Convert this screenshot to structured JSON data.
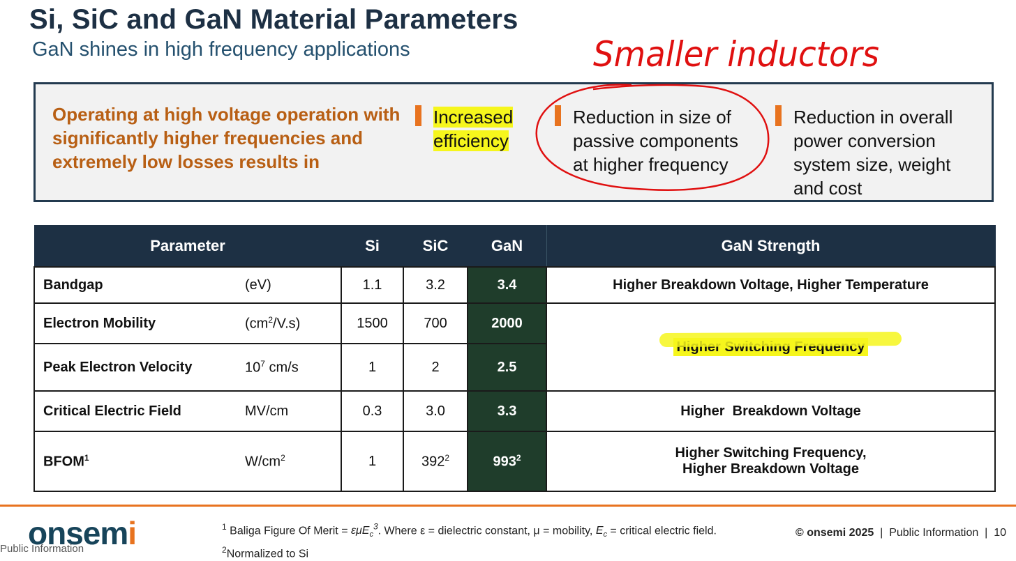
{
  "header": {
    "title": "Si, SiC and GaN Material Parameters",
    "subtitle": "GaN shines in high frequency applications"
  },
  "annotations": {
    "handwritten_note": "Smaller inductors",
    "highlight_color": "#f6f61c",
    "ink_color": "#e01010"
  },
  "callout": {
    "lead": "Operating at high voltage operation with significantly higher frequencies and extremely low losses results in",
    "items": [
      "Increased efficiency",
      "Reduction in size of passive components at higher frequency",
      "Reduction in overall power conversion system size, weight and cost"
    ]
  },
  "table": {
    "headers": {
      "parameter": "Parameter",
      "si": "Si",
      "sic": "SiC",
      "gan": "GaN",
      "strength": "GaN Strength"
    },
    "rows": [
      {
        "name": "Bandgap",
        "unit": "(eV)",
        "si": "1.1",
        "sic": "3.2",
        "gan": "3.4",
        "strength": "Higher Breakdown Voltage, Higher Temperature"
      },
      {
        "name": "Electron Mobility",
        "unit_base": "(cm",
        "unit_sup": "2",
        "unit_tail": "/V.s)",
        "si": "1500",
        "sic": "700",
        "gan": "2000",
        "strength": "Higher Switching Frequency"
      },
      {
        "name": "Peak Electron Velocity",
        "unit_base": "10",
        "unit_sup": "7",
        "unit_tail": " cm/s",
        "si": "1",
        "sic": "2",
        "gan": "2.5"
      },
      {
        "name": "Critical Electric Field",
        "unit": "MV/cm",
        "si": "0.3",
        "sic": "3.0",
        "gan": "3.3",
        "strength": "Higher  Breakdown Voltage"
      },
      {
        "name": "BFOM",
        "name_sup": "1",
        "unit_base": "W/cm",
        "unit_sup": "2",
        "si": "1",
        "sic": "392",
        "sic_sup": "2",
        "gan": "993",
        "gan_sup": "2",
        "strength_line1": "Higher Switching Frequency,",
        "strength_line2": "Higher Breakdown Voltage"
      }
    ]
  },
  "footer": {
    "logo_main": "onsem",
    "logo_accent": "i",
    "public_info": "Public Information",
    "footnote1_mark": "1",
    "footnote1_pre": "Baliga Figure Of Merit = ",
    "footnote1_formula": "εμE",
    "footnote1_sub": "c",
    "footnote1_sup": "3",
    "footnote1_post": ". Where ε = dielectric constant, μ = mobility, ",
    "footnote1_ec": "E",
    "footnote1_ec_sub": "c",
    "footnote1_end": " = critical electric field.",
    "footnote2_mark": "2",
    "footnote2": "Normalized to Si",
    "copyright": "© onsemi 2025",
    "classification": "Public Information",
    "page": "10"
  }
}
